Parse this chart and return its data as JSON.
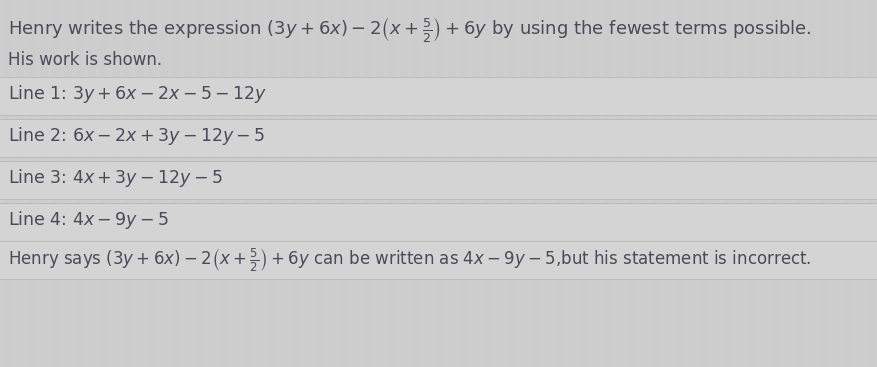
{
  "background_color": "#cdcdcd",
  "line_bg_color_light": "#d8d8d8",
  "line_bg_color_dark": "#c8c8c8",
  "title_text_plain": "Henry writes the expression ",
  "title_math": "(3y + 6x) - 2\\left(x + \\frac{5}{2}\\right) + 6y",
  "title_text_end": " by using the fewest terms possible.",
  "subtitle_text": "His work is shown.",
  "lines": [
    "Line 1: $3y + 6x - 2x - 5 - 12y$",
    "Line 2: $6x - 2x + 3y - 12y - 5$",
    "Line 3: $4x + 3y - 12y - 5$",
    "Line 4: $4x - 9y - 5$"
  ],
  "footer_text": "Henry says $(3y + 6x) - 2\\left(x + \\frac{5}{2}\\right) + 6y$ can be written as $4x - 9y - 5$,but his statement is incorrect.",
  "text_color": "#4a4a5a",
  "figsize": [
    8.78,
    3.67
  ],
  "dpi": 100
}
